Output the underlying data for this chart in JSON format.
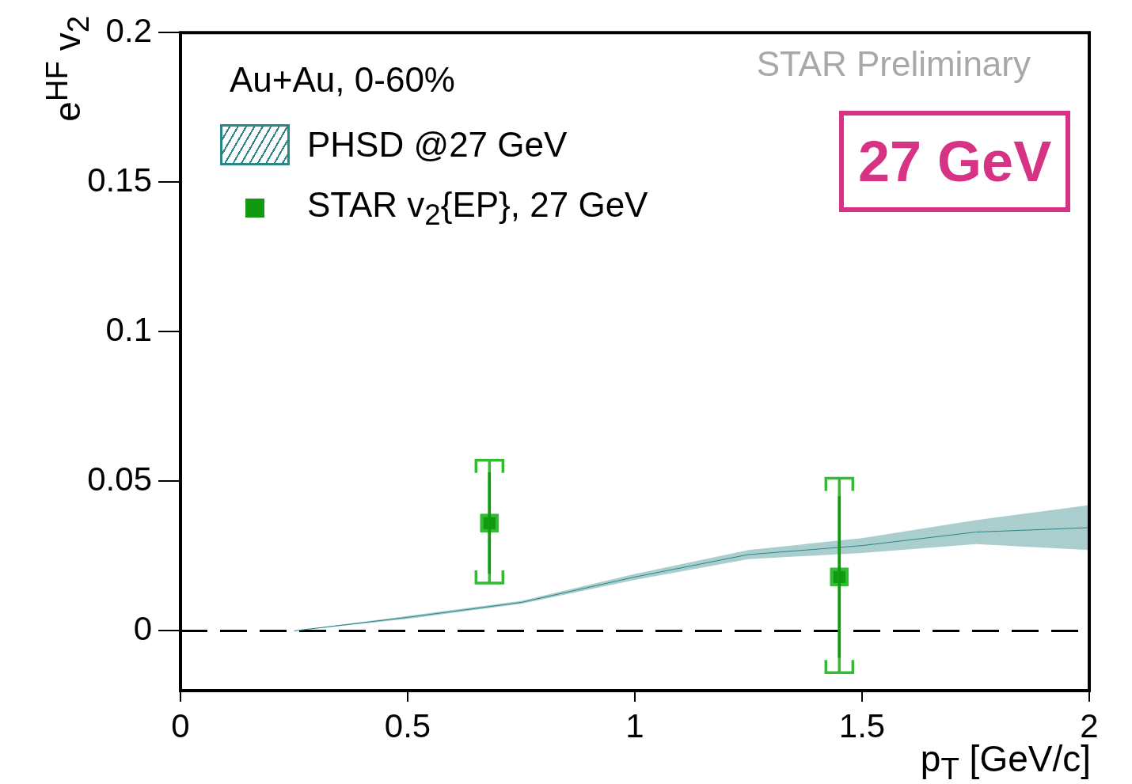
{
  "chart_data": {
    "type": "scatter",
    "xlabel": "p$_{T}$ [GeV/c]",
    "ylabel": "e$^{HF}$ v$_{2}$",
    "xlim": [
      0,
      2
    ],
    "xticks": [
      0,
      0.5,
      1,
      1.5,
      2
    ],
    "ylim": [
      -0.02,
      0.2
    ],
    "yticks": [
      0,
      0.05,
      0.1,
      0.15,
      0.2
    ],
    "legend": "top left",
    "grid": false,
    "ref_lines": [
      {
        "axis": "y",
        "value": 0,
        "line_style": "dashed",
        "color": "#000000"
      }
    ],
    "annotations": [
      "Au+Au, 0-60%",
      "STAR Preliminary",
      "27 GeV"
    ],
    "series": [
      {
        "name": "PHSD @27 GeV",
        "type": "line",
        "color": "#2a8585",
        "x": [
          0.25,
          0.5,
          0.75,
          1.0,
          1.25,
          1.5,
          1.75,
          2.0
        ],
        "values": [
          0,
          0.0045,
          0.0095,
          0.018,
          0.0255,
          0.0285,
          0.033,
          0.0345
        ],
        "lower": [
          0,
          0.004,
          0.009,
          0.017,
          0.024,
          0.026,
          0.029,
          0.027
        ],
        "upper": [
          0,
          0.005,
          0.01,
          0.019,
          0.027,
          0.031,
          0.037,
          0.042
        ]
      },
      {
        "name": "STAR v$_{2}${EP}, 27 GeV",
        "marker": "square",
        "color": "#119911",
        "x": [
          0.68,
          1.45
        ],
        "values": [
          0.036,
          0.018
        ],
        "errors": [
          [
            0.019,
            0.053
          ],
          [
            -0.009,
            0.045
          ]
        ]
      },
      {
        "marker": "square",
        "color": "#33bb33",
        "x": [
          0.68,
          1.45
        ],
        "values": [
          0.036,
          0.018
        ],
        "errors": [
          [
            0.016,
            0.057
          ],
          [
            -0.014,
            0.051
          ]
        ]
      }
    ]
  }
}
